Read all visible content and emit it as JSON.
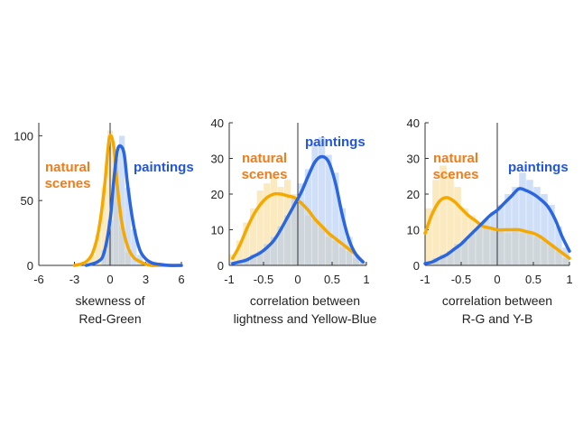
{
  "colors": {
    "natural": "#f5a800",
    "paintings": "#2a66e0",
    "natural_label": "#f07c1a",
    "paintings_label": "#2255dd"
  },
  "chart_data": [
    {
      "type": "line",
      "xlabel_lines": [
        "skewness of",
        "Red-Green"
      ],
      "ylabel": "",
      "xlim": [
        -6,
        6
      ],
      "ylim": [
        0,
        110
      ],
      "xticks": [
        -6,
        -3,
        0,
        3,
        6
      ],
      "yticks": [
        0,
        50,
        100
      ],
      "annotations": {
        "natural": [
          "natural",
          "scenes"
        ],
        "paintings": [
          "paintings"
        ]
      },
      "series": [
        {
          "name": "natural scenes",
          "role": "natural",
          "x": [
            -3,
            -2.5,
            -2,
            -1.5,
            -1,
            -0.5,
            -0.2,
            0,
            0.3,
            0.6,
            1,
            1.5,
            2,
            2.5,
            3,
            3.5,
            4,
            5,
            6
          ],
          "y": [
            0,
            1,
            3,
            9,
            25,
            58,
            88,
            100,
            92,
            62,
            32,
            14,
            6,
            3,
            1,
            0,
            0,
            0,
            0
          ]
        },
        {
          "name": "paintings",
          "role": "paintings",
          "x": [
            -2,
            -1,
            -0.5,
            0,
            0.3,
            0.6,
            0.9,
            1.2,
            1.5,
            2,
            2.5,
            3,
            3.5,
            4,
            5,
            6
          ],
          "y": [
            0,
            3,
            10,
            35,
            65,
            88,
            92,
            85,
            60,
            30,
            12,
            5,
            2,
            1,
            0,
            0
          ]
        }
      ],
      "histograms": [
        {
          "role": "natural",
          "x": [
            -1.5,
            -1,
            -0.5,
            0,
            0.5,
            1,
            1.5
          ],
          "y": [
            8,
            24,
            60,
            104,
            85,
            30,
            10
          ]
        },
        {
          "role": "paintings",
          "x": [
            -0.5,
            0,
            0.5,
            1,
            1.5,
            2,
            2.5
          ],
          "y": [
            12,
            35,
            82,
            100,
            60,
            28,
            8
          ]
        }
      ]
    },
    {
      "type": "line",
      "xlabel_lines": [
        "correlation between",
        "lightness and Yellow-Blue"
      ],
      "ylabel": "",
      "xlim": [
        -1,
        1
      ],
      "ylim": [
        0,
        40
      ],
      "xticks": [
        -1,
        -0.5,
        0,
        0.5,
        1
      ],
      "yticks": [
        0,
        10,
        20,
        30,
        40
      ],
      "annotations": {
        "natural": [
          "natural",
          "scenes"
        ],
        "paintings": [
          "paintings"
        ]
      },
      "series": [
        {
          "name": "natural scenes",
          "role": "natural",
          "x": [
            -0.95,
            -0.85,
            -0.75,
            -0.65,
            -0.55,
            -0.45,
            -0.35,
            -0.25,
            -0.15,
            -0.05,
            0.05,
            0.15,
            0.25,
            0.35,
            0.45,
            0.55,
            0.65,
            0.75,
            0.85,
            0.95
          ],
          "y": [
            2,
            5.5,
            10,
            14,
            17,
            19,
            20,
            20,
            19.5,
            19,
            17.5,
            15.5,
            13,
            11,
            9,
            7.5,
            6,
            4.5,
            3,
            1
          ]
        },
        {
          "name": "paintings",
          "role": "paintings",
          "x": [
            -0.95,
            -0.85,
            -0.75,
            -0.65,
            -0.55,
            -0.45,
            -0.35,
            -0.25,
            -0.15,
            -0.05,
            0.05,
            0.15,
            0.25,
            0.35,
            0.45,
            0.55,
            0.65,
            0.75,
            0.85,
            0.95
          ],
          "y": [
            0.5,
            1,
            1.5,
            2.5,
            3.5,
            5,
            7,
            10,
            13.5,
            17,
            20.5,
            25,
            29,
            30.5,
            29,
            23,
            14,
            7,
            3,
            1
          ]
        }
      ],
      "histograms": [
        {
          "role": "natural",
          "x": [
            -0.95,
            -0.85,
            -0.75,
            -0.65,
            -0.55,
            -0.45,
            -0.35,
            -0.25,
            -0.15,
            -0.05,
            0.05,
            0.15,
            0.25,
            0.35,
            0.45,
            0.55,
            0.65,
            0.75,
            0.85,
            0.95
          ],
          "y": [
            3,
            7,
            12,
            16,
            21,
            23,
            25,
            22,
            24,
            20,
            18,
            14,
            13,
            11,
            8,
            7,
            5,
            4,
            2,
            1
          ]
        },
        {
          "role": "paintings",
          "x": [
            -0.95,
            -0.85,
            -0.75,
            -0.65,
            -0.55,
            -0.45,
            -0.35,
            -0.25,
            -0.15,
            -0.05,
            0.05,
            0.15,
            0.25,
            0.35,
            0.45,
            0.55,
            0.65,
            0.75,
            0.85,
            0.95
          ],
          "y": [
            1,
            1,
            2,
            3,
            4,
            6,
            8,
            11,
            14,
            19,
            23,
            27,
            34,
            36,
            31,
            26,
            16,
            8,
            3,
            1
          ]
        }
      ]
    },
    {
      "type": "line",
      "xlabel_lines": [
        "correlation between",
        "R-G and Y-B"
      ],
      "ylabel": "",
      "xlim": [
        -1,
        1
      ],
      "ylim": [
        0,
        40
      ],
      "xticks": [
        -1,
        -0.5,
        0,
        0.5,
        1
      ],
      "yticks": [
        0,
        10,
        20,
        30,
        40
      ],
      "annotations": {
        "natural": [
          "natural",
          "scenes"
        ],
        "paintings": [
          "paintings"
        ]
      },
      "series": [
        {
          "name": "natural scenes",
          "role": "natural",
          "x": [
            -1,
            -0.9,
            -0.8,
            -0.7,
            -0.6,
            -0.5,
            -0.4,
            -0.3,
            -0.2,
            -0.1,
            0,
            0.1,
            0.2,
            0.3,
            0.4,
            0.5,
            0.6,
            0.7,
            0.8,
            0.9,
            1
          ],
          "y": [
            9,
            14.5,
            18,
            19,
            18,
            16,
            14,
            12.5,
            11,
            10.5,
            10,
            10,
            10,
            10,
            9.5,
            9,
            8,
            6.5,
            5,
            3.5,
            2
          ]
        },
        {
          "name": "paintings",
          "role": "paintings",
          "x": [
            -1,
            -0.9,
            -0.8,
            -0.7,
            -0.6,
            -0.5,
            -0.4,
            -0.3,
            -0.2,
            -0.1,
            0,
            0.1,
            0.2,
            0.3,
            0.4,
            0.5,
            0.6,
            0.7,
            0.8,
            0.9,
            1
          ],
          "y": [
            0.5,
            1,
            2,
            3,
            4.5,
            6,
            8,
            10,
            12,
            14,
            15.5,
            17.5,
            19.5,
            21.5,
            21,
            20,
            18.5,
            16.5,
            13,
            8,
            4
          ]
        }
      ],
      "histograms": [
        {
          "role": "natural",
          "x": [
            -0.95,
            -0.85,
            -0.75,
            -0.65,
            -0.55,
            -0.45,
            -0.35,
            -0.25,
            -0.15,
            -0.05,
            0.05,
            0.15,
            0.25,
            0.35,
            0.45,
            0.55,
            0.65,
            0.75,
            0.85,
            0.95
          ],
          "y": [
            16,
            24,
            28,
            26,
            22,
            16,
            14,
            12,
            11,
            10,
            10,
            9,
            10,
            9,
            9,
            8,
            7,
            6,
            4,
            2
          ]
        },
        {
          "role": "paintings",
          "x": [
            -0.95,
            -0.85,
            -0.75,
            -0.65,
            -0.55,
            -0.45,
            -0.35,
            -0.25,
            -0.15,
            -0.05,
            0.05,
            0.15,
            0.25,
            0.35,
            0.45,
            0.55,
            0.65,
            0.75,
            0.85,
            0.95
          ],
          "y": [
            1,
            2,
            3,
            4,
            6,
            7,
            9,
            11,
            13,
            15,
            17,
            20,
            22,
            26,
            24,
            22,
            20,
            17,
            11,
            5
          ]
        }
      ]
    }
  ]
}
